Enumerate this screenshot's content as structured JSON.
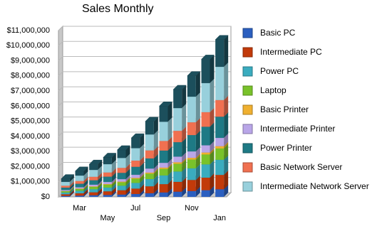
{
  "chart_data": {
    "type": "bar3d_stacked",
    "title": "Sales Monthly",
    "categories": [
      null,
      "Mar",
      null,
      "May",
      null,
      "Jul",
      null,
      "Sep",
      null,
      "Nov",
      null,
      "Jan"
    ],
    "series": [
      {
        "name": "Basic PC",
        "color": "#2b5fc0",
        "values": [
          60000,
          80000,
          105000,
          125000,
          150000,
          190000,
          240000,
          290000,
          340000,
          385000,
          440000,
          500000
        ]
      },
      {
        "name": "Intermediate PC",
        "color": "#c23a0a",
        "values": [
          110000,
          155000,
          195000,
          240000,
          285000,
          355000,
          455000,
          550000,
          650000,
          730000,
          830000,
          950000
        ]
      },
      {
        "name": "Power PC",
        "color": "#3aacbf",
        "values": [
          115000,
          165000,
          205000,
          250000,
          300000,
          375000,
          480000,
          575000,
          685000,
          770000,
          875000,
          1000000
        ]
      },
      {
        "name": "Laptop",
        "color": "#79c22a",
        "values": [
          85000,
          120000,
          155000,
          190000,
          225000,
          280000,
          360000,
          435000,
          510000,
          580000,
          655000,
          750000
        ]
      },
      {
        "name": "Basic Printer",
        "color": "#f0b030",
        "values": [
          15000,
          25000,
          30000,
          40000,
          45000,
          55000,
          70000,
          85000,
          100000,
          115000,
          130000,
          150000
        ]
      },
      {
        "name": "Intermediate Printer",
        "color": "#b9a6e8",
        "values": [
          65000,
          90000,
          115000,
          140000,
          165000,
          205000,
          265000,
          315000,
          375000,
          425000,
          480000,
          550000
        ]
      },
      {
        "name": "Power Printer",
        "color": "#1e7a85",
        "values": [
          160000,
          230000,
          290000,
          350000,
          415000,
          525000,
          670000,
          810000,
          955000,
          1080000,
          1225000,
          1400000
        ]
      },
      {
        "name": "Basic Network Server",
        "color": "#f07050",
        "values": [
          125000,
          180000,
          230000,
          275000,
          330000,
          410000,
          530000,
          635000,
          750000,
          845000,
          965000,
          1100000
        ]
      },
      {
        "name": "Intermediate Network Server",
        "color": "#98d0dc",
        "values": [
          255000,
          360000,
          455000,
          550000,
          655000,
          825000,
          1055000,
          1270000,
          1505000,
          1695000,
          1925000,
          2200000
        ]
      },
      {
        "color": "#1c4f5c",
        "values": [
          205000,
          295000,
          375000,
          450000,
          535000,
          675000,
          865000,
          1040000,
          1230000,
          1385000,
          1575000,
          1800000
        ]
      }
    ],
    "ylim": [
      0,
      11000000
    ],
    "yticks": [
      {
        "value": 0,
        "label": "$0"
      },
      {
        "value": 1000000,
        "label": "$1,000,000"
      },
      {
        "value": 2000000,
        "label": "$2,000,000"
      },
      {
        "value": 3000000,
        "label": "$3,000,000"
      },
      {
        "value": 4000000,
        "label": "$4,000,000"
      },
      {
        "value": 5000000,
        "label": "$5,000,000"
      },
      {
        "value": 6000000,
        "label": "$6,000,000"
      },
      {
        "value": 7000000,
        "label": "$7,000,000"
      },
      {
        "value": 8000000,
        "label": "$8,000,000"
      },
      {
        "value": 9000000,
        "label": "$9,000,000"
      },
      {
        "value": 10000000,
        "label": "$10,000,000"
      },
      {
        "value": 11000000,
        "label": "$11,000,000"
      }
    ],
    "grid": true
  }
}
